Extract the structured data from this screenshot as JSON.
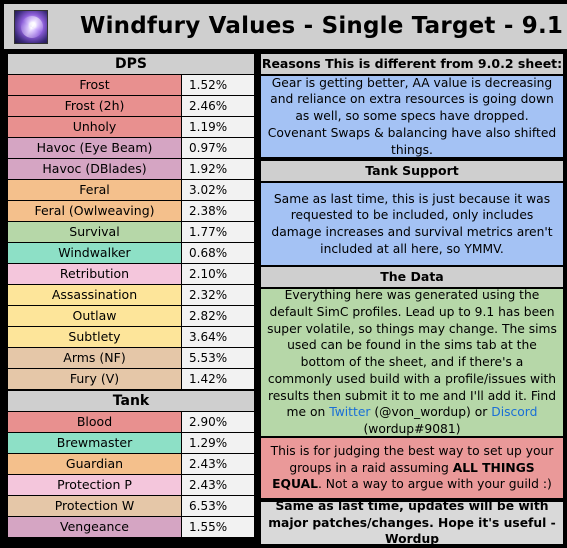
{
  "header": {
    "title": "Windfury Values - Single Target - 9.1",
    "logo_icon": "windfury-totem-icon"
  },
  "dps": {
    "heading": "DPS",
    "rows": [
      {
        "name": "Frost",
        "value": "1.52%",
        "color": "#e8908f"
      },
      {
        "name": "Frost (2h)",
        "value": "2.46%",
        "color": "#e8908f"
      },
      {
        "name": "Unholy",
        "value": "1.19%",
        "color": "#e8908f"
      },
      {
        "name": "Havoc (Eye Beam)",
        "value": "0.97%",
        "color": "#d5a5c3"
      },
      {
        "name": "Havoc (DBlades)",
        "value": "1.92%",
        "color": "#d5a5c3"
      },
      {
        "name": "Feral",
        "value": "3.02%",
        "color": "#f4c08c"
      },
      {
        "name": "Feral (Owlweaving)",
        "value": "2.38%",
        "color": "#f4c08c"
      },
      {
        "name": "Survival",
        "value": "1.77%",
        "color": "#b6d7a8"
      },
      {
        "name": "Windwalker",
        "value": "0.68%",
        "color": "#8de0c6"
      },
      {
        "name": "Retribution",
        "value": "2.10%",
        "color": "#f4c6dc"
      },
      {
        "name": "Assassination",
        "value": "2.32%",
        "color": "#fde59a"
      },
      {
        "name": "Outlaw",
        "value": "2.82%",
        "color": "#fde59a"
      },
      {
        "name": "Subtlety",
        "value": "3.64%",
        "color": "#fde59a"
      },
      {
        "name": "Arms (NF)",
        "value": "5.53%",
        "color": "#e5c7a8"
      },
      {
        "name": "Fury (V)",
        "value": "1.42%",
        "color": "#e5c7a8"
      }
    ]
  },
  "tank": {
    "heading": "Tank",
    "rows": [
      {
        "name": "Blood",
        "value": "2.90%",
        "color": "#e8908f"
      },
      {
        "name": "Brewmaster",
        "value": "1.29%",
        "color": "#8de0c6"
      },
      {
        "name": "Guardian",
        "value": "2.43%",
        "color": "#f4c08c"
      },
      {
        "name": "Protection P",
        "value": "2.43%",
        "color": "#f4c6dc"
      },
      {
        "name": "Protection W",
        "value": "6.53%",
        "color": "#e5c7a8"
      },
      {
        "name": "Vengeance",
        "value": "1.55%",
        "color": "#d5a5c3"
      }
    ]
  },
  "panels": {
    "reasons": {
      "heading": "Reasons This is different from 9.0.2 sheet:",
      "body": "Gear is getting better, AA value is decreasing and reliance on extra resources is going down as well, so some specs have dropped. Covenant Swaps & balancing have also shifted things.",
      "color": "#a4c2f4"
    },
    "tank_support": {
      "heading": "Tank Support",
      "body": "Same as last time, this is just because it was requested to be included, only includes damage increases and survival metrics aren't included at all here, so YMMV.",
      "color": "#a4c2f4"
    },
    "the_data": {
      "heading": "The Data",
      "body_main": "Everything here was generated using the default SimC profiles. Lead up to 9.1 has been super volatile, so things may change. The sims used can be found in the sims tab at the bottom of the sheet, and if there's a commonly used build with a profile/issues with results then submit it to me and I'll add it. Find me on ",
      "twitter_label": "Twitter",
      "twitter_handle": " (@von_wordup) or ",
      "discord_label": "Discord",
      "discord_handle": " (wordup#9081)",
      "color": "#b6d7a8"
    },
    "disclaimer": {
      "body_a": "This is for judging the best way to set up your groups in a raid assuming ",
      "body_bold": "ALL THINGS EQUAL",
      "body_b": ". Not a way to argue with your guild :)",
      "color": "#ea9999"
    },
    "footer": {
      "body": "Same as last time, updates will be with major patches/changes. Hope it's useful - Wordup",
      "color": "#d9d9d9"
    }
  }
}
